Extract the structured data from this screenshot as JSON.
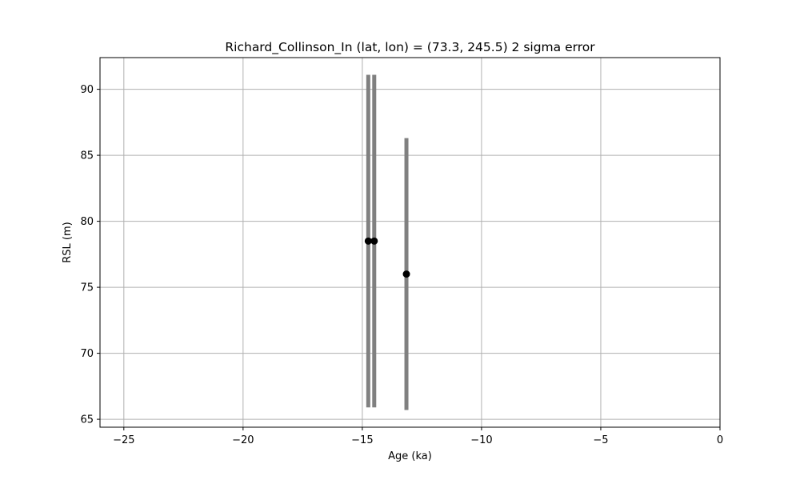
{
  "chart_data": {
    "type": "scatter",
    "title": "Richard_Collinson_In (lat, lon) = (73.3, 245.5)  2 sigma error",
    "xlabel": "Age (ka)",
    "ylabel": "RSL (m)",
    "xlim": [
      -26,
      0
    ],
    "ylim": [
      64.4,
      92.4
    ],
    "xticks": [
      -25,
      -20,
      -15,
      -10,
      -5,
      0
    ],
    "yticks": [
      65,
      70,
      75,
      80,
      85,
      90
    ],
    "grid": true,
    "legend": "none",
    "points": [
      {
        "x": -14.75,
        "y": 78.5,
        "y_low": 65.9,
        "y_high": 91.1
      },
      {
        "x": -14.5,
        "y": 78.5,
        "y_low": 65.9,
        "y_high": 91.1
      },
      {
        "x": -13.15,
        "y": 76.0,
        "y_low": 65.7,
        "y_high": 86.3
      }
    ],
    "colors": {
      "point": "#000000",
      "errorbar": "#808080",
      "grid": "#b0b0b0",
      "axes": "#000000"
    }
  }
}
